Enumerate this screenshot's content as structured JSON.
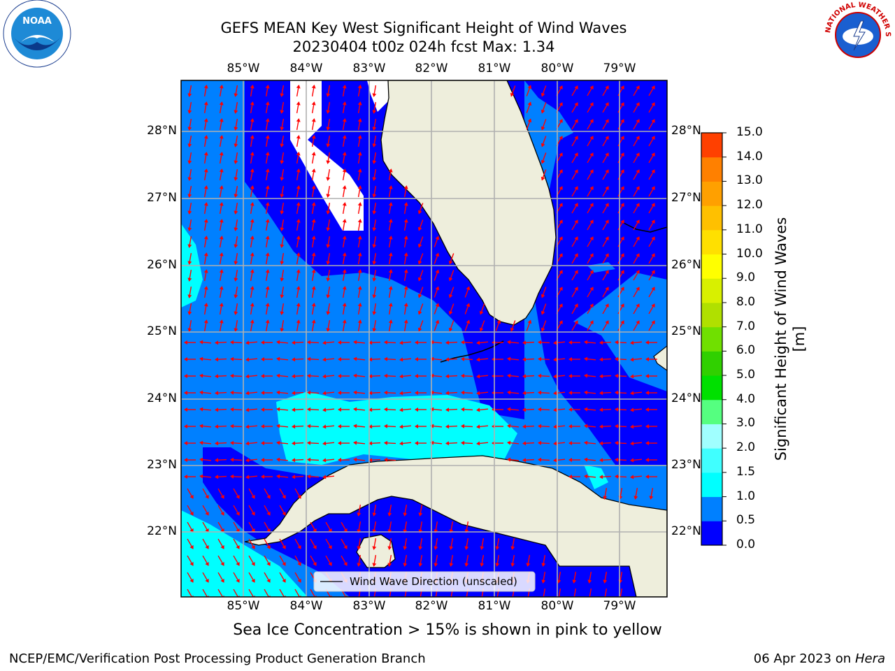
{
  "title": {
    "line1": "GEFS MEAN Key West Significant Height of Wind Waves",
    "line2": "20230404 t00z 024h fcst   Max: 1.34"
  },
  "map": {
    "lon_labels": [
      "85°W",
      "84°W",
      "83°W",
      "82°W",
      "81°W",
      "80°W",
      "79°W"
    ],
    "lat_labels": [
      "28°N",
      "27°N",
      "26°N",
      "25°N",
      "24°N",
      "23°N",
      "22°N"
    ],
    "legend_label": "Wind Wave Direction (unscaled)",
    "colors": {
      "land": "#eeeedc",
      "arrow": "#ff0000",
      "grid": "#b0b0b0"
    }
  },
  "colorbar": {
    "label": "Significant Height of Wind Waves [m]",
    "ticks": [
      "0.0",
      "0.5",
      "1.0",
      "1.5",
      "2.0",
      "3.0",
      "4.0",
      "5.0",
      "6.0",
      "7.0",
      "8.0",
      "9.0",
      "10.0",
      "11.0",
      "12.0",
      "13.0",
      "14.0",
      "15.0"
    ],
    "colors": [
      "#0000ff",
      "#0080ff",
      "#00ffff",
      "#40ffff",
      "#a0ffff",
      "#55ff80",
      "#00e000",
      "#30d000",
      "#70e000",
      "#b0e000",
      "#d8f000",
      "#ffff00",
      "#ffe000",
      "#ffc000",
      "#ffa000",
      "#ff8000",
      "#ff4000",
      "#ff0000"
    ]
  },
  "logos": {
    "left": "NOAA",
    "right": "NATIONAL WEATHER SERVICE"
  },
  "subtitle": "Sea Ice Concentration > 15% is shown in pink to yellow",
  "footer": {
    "left": "NCEP/EMC/Verification Post Processing Product Generation Branch",
    "right_date": "06 Apr 2023 on ",
    "right_host": "Hera"
  }
}
